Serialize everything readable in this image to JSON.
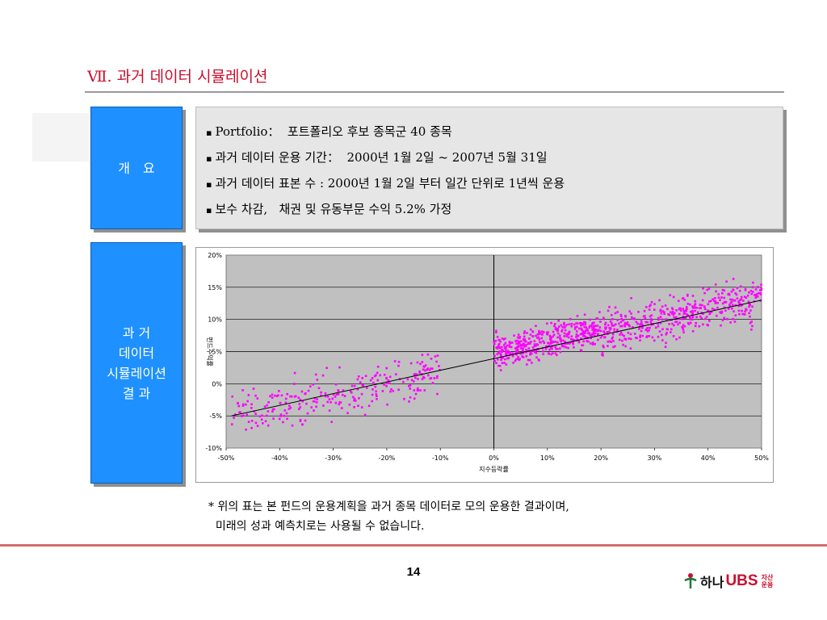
{
  "title": "Ⅶ. 과거 데이터 시뮬레이션",
  "overview": {
    "label_lines": [
      "개　요"
    ],
    "items": [
      "Portfolio：  포트폴리오 후보 종목군 40 종목",
      "과거 데이터 운용 기간：  2000년 1월 2일 ~ 2007년 5월 31일",
      "과거 데이터 표본 수 : 2000년 1월 2일 부터 일간 단위로 1년씩 운용",
      "보수 차감,   채권 및 유동부문 수익 5.2% 가정"
    ],
    "bullet_glyph": "▪"
  },
  "results": {
    "label_lines": [
      "과 거",
      "데이터",
      "시뮬레이션",
      "결 과"
    ]
  },
  "chart_data": {
    "type": "scatter",
    "x_tick_labels": [
      "-50%",
      "-40%",
      "-30%",
      "-20%",
      "-10%",
      "0%",
      "10%",
      "20%",
      "30%",
      "40%",
      "50%"
    ],
    "y_tick_labels": [
      "20%",
      "15%",
      "10%",
      "5%",
      "0%",
      "-5%",
      "-10%"
    ],
    "xlim": [
      -50,
      50
    ],
    "ylim": [
      -10,
      20
    ],
    "xlabel": "지수등락률",
    "ylabel": "펀드수익률",
    "grid": "horizontal",
    "plot_background": "#c0c0c0",
    "point_color": "#ff00ff",
    "trend_line": {
      "x": [
        -49,
        50
      ],
      "y": [
        -5,
        13
      ]
    },
    "clusters": [
      {
        "x_range": [
          -49,
          -10
        ],
        "slope": 0.18,
        "intercept": 3.8,
        "spread": 1.8,
        "count": 260
      },
      {
        "x_range": [
          0,
          20
        ],
        "slope": 0.18,
        "intercept": 4.8,
        "spread": 1.2,
        "count": 420
      },
      {
        "x_range": [
          20,
          50
        ],
        "slope": 0.18,
        "intercept": 4.2,
        "spread": 1.7,
        "count": 430
      }
    ]
  },
  "note": {
    "line1": "* 위의 표는 본 펀드의 운용계획을 과거 종목 데이터로 모의 운용한 결과이며,",
    "line2": "  미래의 성과 예측치로는 사용될 수 없습니다."
  },
  "page_number": "14",
  "logo": {
    "korean": "하나",
    "ubs": "UBS",
    "sub_line1": "자산",
    "sub_line2": "운용"
  },
  "colors": {
    "accent_red": "#c8102e",
    "box_blue": "#1e90ff",
    "info_gray": "#e6e6e6"
  }
}
